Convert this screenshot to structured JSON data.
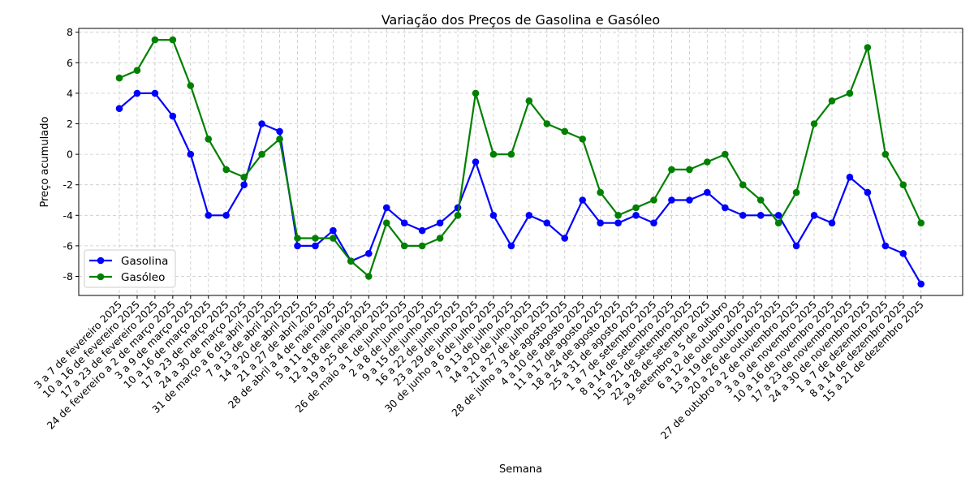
{
  "chart_data": {
    "type": "line",
    "title": "Variação dos Preços de Gasolina e Gasóleo",
    "xlabel": "Semana",
    "ylabel": "Preço acumulado",
    "ylim": [
      -9.25,
      8.25
    ],
    "yticks": [
      -8,
      -6,
      -4,
      -2,
      0,
      2,
      4,
      6,
      8
    ],
    "grid": true,
    "legend_position": "lower-left",
    "categories": [
      "3 a 7 de fevereiro 2025",
      "10 a 16 de fevereiro 2025",
      "17 a 23 de fevereiro 2025",
      "24 de fevereiro a 2 de março 2025",
      "3 a 9 de março 2025",
      "10 a 16 de março 2025",
      "17 a 23 de março 2025",
      "24 a 30 de março 2025",
      "31 de março a 6 de abril 2025",
      "7 a 13 de abril 2025",
      "14 a 20 de abril 2025",
      "21 a 27 de abril 2025",
      "28 de abril a 4 de maio 2025",
      "5 a 11 de maio 2025",
      "12 a 18 de maio 2025",
      "19 a 25 de maio 2025",
      "26 de maio a 1 de junho 2025",
      "2 a 8 de junho 2025",
      "9 a 15 de junho 2025",
      "16 a 22 de junho 2025",
      "23 a 29 de junho 2025",
      "30 de junho a 6 de julho 2025",
      "7 a 13 de julho 2025",
      "14 a 20 de julho 2025",
      "21 a 27 de julho 2025",
      "28 de julho a 3 de agosto 2025",
      "4 a 10 de agosto 2025",
      "11 a 17 de agosto 2025",
      "18 a 24 de agosto 2025",
      "25 a 31 de agosto 2025",
      "1 a 7 de setembro 2025",
      "8 a 14 de setembro 2025",
      "15 a 21 de setembro 2025",
      "22 a 28 de setembro 2025",
      "29 setembro a 5 de outubro",
      "6 a 12 de outubro 2025",
      "13 a 19 de outubro 2025",
      "20 a 26 de outubro 2025",
      "27 de outubro a 2 de novembro 2025",
      "3 a 9 de novembro 2025",
      "10 a 16 de novembro 2025",
      "17 a 23 de novembro 2025",
      "24 a 30 de novembro 2025",
      "1 a 7 de dezembro 2025",
      "8 a 14 de dezembro 2025",
      "15 a 21 de dezembro 2025"
    ],
    "series": [
      {
        "name": "Gasolina",
        "color": "#0000ff",
        "values": [
          3,
          4,
          4,
          2.5,
          0,
          -4,
          -4,
          -2,
          2,
          1.5,
          -6,
          -6,
          -5,
          -7,
          -6.5,
          -3.5,
          -4.5,
          -5,
          -4.5,
          -3.5,
          -0.5,
          -4,
          -6,
          -4,
          -4.5,
          -5.5,
          -3,
          -4.5,
          -4.5,
          -4,
          -4.5,
          -3,
          -3,
          -2.5,
          -3.5,
          -4,
          -4,
          -4,
          -6,
          -4,
          -4.5,
          -1.5,
          -2.5,
          -6,
          -6.5,
          -8.5
        ]
      },
      {
        "name": "Gasóleo",
        "color": "#008000",
        "values": [
          5,
          5.5,
          7.5,
          7.5,
          4.5,
          1,
          -1,
          -1.5,
          0,
          1,
          -5.5,
          -5.5,
          -5.5,
          -7,
          -8,
          -4.5,
          -6,
          -6,
          -5.5,
          -4,
          4,
          0,
          0,
          3.5,
          2,
          1.5,
          1,
          -2.5,
          -4,
          -3.5,
          -3,
          -1,
          -1,
          -0.5,
          0,
          -2,
          -3,
          -4.5,
          -2.5,
          2,
          3.5,
          4,
          7,
          0,
          -2,
          -4.5
        ]
      }
    ]
  }
}
